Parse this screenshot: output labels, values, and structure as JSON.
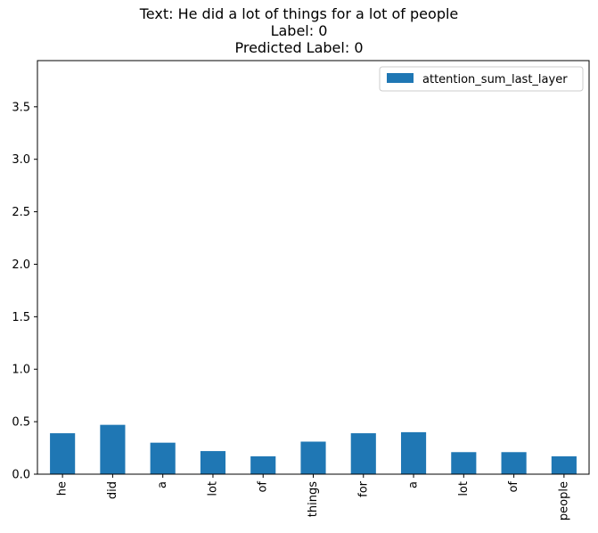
{
  "chart_data": {
    "type": "bar",
    "title_lines": [
      "Text: He did a lot of things for a lot of people",
      "Label: 0",
      "Predicted Label: 0"
    ],
    "categories": [
      "he",
      "did",
      "a",
      "lot",
      "of",
      "things",
      "for",
      "a",
      "lot",
      "of",
      "people"
    ],
    "series": [
      {
        "name": "attention_sum_last_layer",
        "color": "#1f77b4",
        "values": [
          0.39,
          0.47,
          0.3,
          0.22,
          0.17,
          0.31,
          0.39,
          0.4,
          0.21,
          0.21,
          0.17
        ]
      }
    ],
    "ylim": [
      0,
      3.94
    ],
    "yticks": [
      0.0,
      0.5,
      1.0,
      1.5,
      2.0,
      2.5,
      3.0,
      3.5
    ],
    "ytick_labels": [
      "0.0",
      "0.5",
      "1.0",
      "1.5",
      "2.0",
      "2.5",
      "3.0",
      "3.5"
    ],
    "xlabel": "",
    "ylabel": "",
    "legend_position": "top-right",
    "grid": false
  }
}
